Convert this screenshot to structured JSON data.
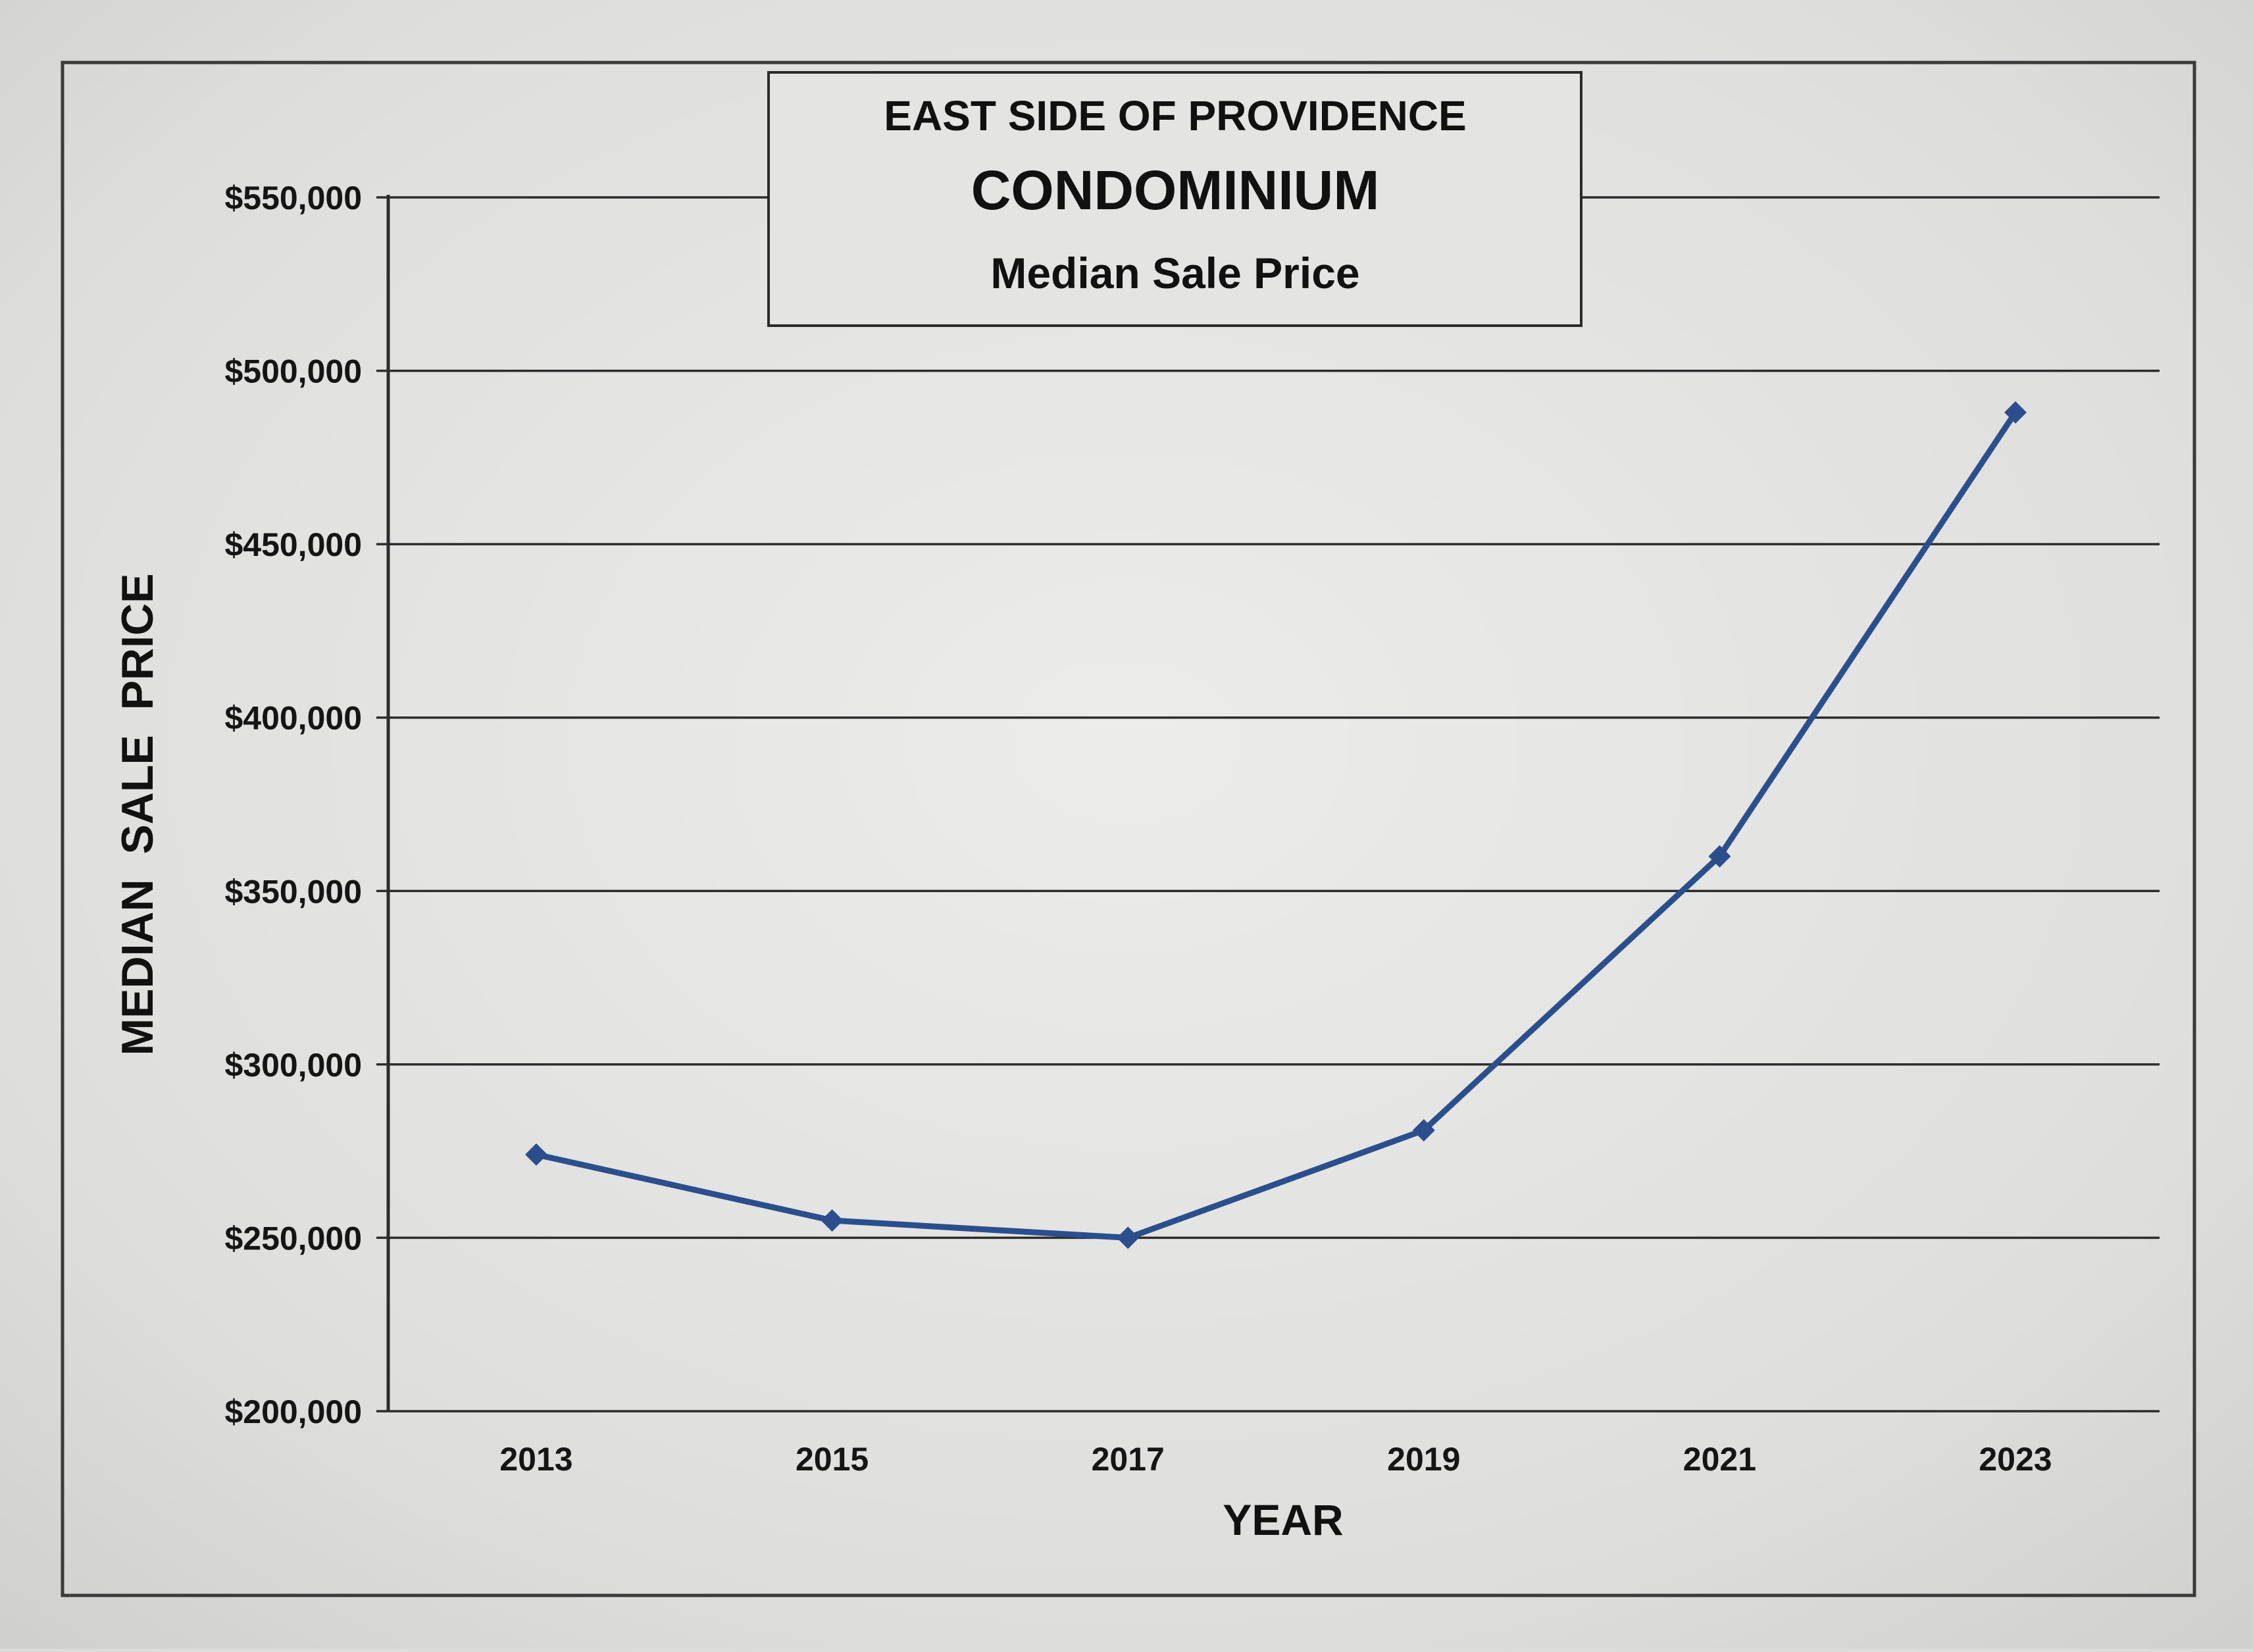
{
  "chart_data": {
    "type": "line",
    "title_lines": [
      "EAST SIDE OF PROVIDENCE",
      "CONDOMINIUM",
      "Median Sale Price"
    ],
    "xlabel": "YEAR",
    "ylabel": "MEDIAN  SALE  PRICE",
    "categories": [
      "2013",
      "2015",
      "2017",
      "2019",
      "2021",
      "2023"
    ],
    "series": [
      {
        "values": [
          274000,
          255000,
          250000,
          281000,
          360000,
          488000
        ],
        "color": "#2b4e8c",
        "marker": "diamond"
      }
    ],
    "ylim": [
      200000,
      550000
    ],
    "ytick_values": [
      200000,
      250000,
      300000,
      350000,
      400000,
      450000,
      500000,
      550000
    ],
    "ytick_labels": [
      "$200,000",
      "$250,000",
      "$300,000",
      "$350,000",
      "$400,000",
      "$450,000",
      "$500,000",
      "$550,000"
    ],
    "grid": true,
    "legend": "none"
  }
}
